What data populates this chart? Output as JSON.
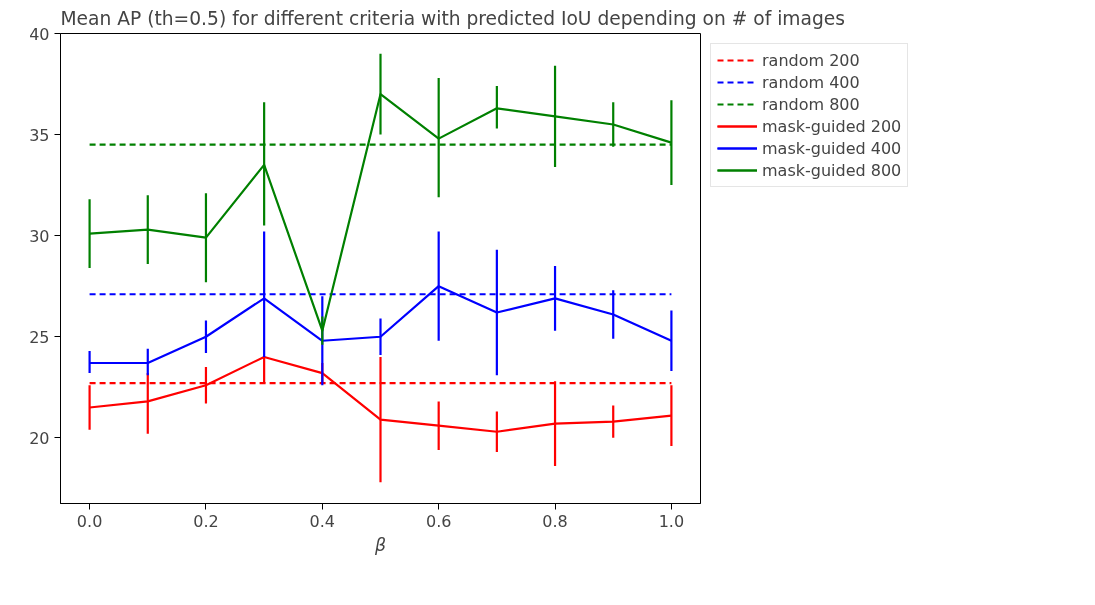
{
  "chart_data": {
    "type": "line",
    "title": "Mean AP (th=0.5) for different criteria with predicted IoU depending on # of images",
    "xlabel": "β",
    "x": [
      0.0,
      0.1,
      0.2,
      0.3,
      0.4,
      0.5,
      0.6,
      0.7,
      0.8,
      0.9,
      1.0
    ],
    "series": [
      {
        "name": "random 200",
        "color": "#ff0000",
        "line_style": "dashed",
        "values": [
          22.7,
          22.7,
          22.7,
          22.7,
          22.7,
          22.7,
          22.7,
          22.7,
          22.7,
          22.7,
          22.7
        ]
      },
      {
        "name": "random 400",
        "color": "#0000ff",
        "line_style": "dashed",
        "values": [
          27.1,
          27.1,
          27.1,
          27.1,
          27.1,
          27.1,
          27.1,
          27.1,
          27.1,
          27.1,
          27.1
        ]
      },
      {
        "name": "random 800",
        "color": "#008000",
        "line_style": "dashed",
        "values": [
          34.5,
          34.5,
          34.5,
          34.5,
          34.5,
          34.5,
          34.5,
          34.5,
          34.5,
          34.5,
          34.5
        ]
      },
      {
        "name": "mask-guided 200",
        "color": "#ff0000",
        "line_style": "solid",
        "values": [
          21.5,
          21.8,
          22.6,
          24.0,
          23.2,
          20.9,
          20.6,
          20.3,
          20.7,
          20.8,
          21.1
        ],
        "errors": [
          [
            20.4,
            22.6
          ],
          [
            20.2,
            23.2
          ],
          [
            21.7,
            23.5
          ],
          [
            22.7,
            24.0
          ],
          [
            22.7,
            23.7
          ],
          [
            17.8,
            24.0
          ],
          [
            19.4,
            21.8
          ],
          [
            19.3,
            21.3
          ],
          [
            18.6,
            22.8
          ],
          [
            20.0,
            21.6
          ],
          [
            19.6,
            22.6
          ]
        ]
      },
      {
        "name": "mask-guided 400",
        "color": "#0000ff",
        "line_style": "solid",
        "values": [
          23.7,
          23.7,
          25.0,
          26.9,
          24.8,
          25.0,
          27.5,
          26.2,
          26.9,
          26.1,
          24.8
        ],
        "errors": [
          [
            23.2,
            24.3
          ],
          [
            23.1,
            24.4
          ],
          [
            24.2,
            25.8
          ],
          [
            24.0,
            30.2
          ],
          [
            22.6,
            27.0
          ],
          [
            24.1,
            25.9
          ],
          [
            24.8,
            30.2
          ],
          [
            23.1,
            29.3
          ],
          [
            25.3,
            28.5
          ],
          [
            24.9,
            27.3
          ],
          [
            23.3,
            26.3
          ]
        ]
      },
      {
        "name": "mask-guided 800",
        "color": "#008000",
        "line_style": "solid",
        "values": [
          30.1,
          30.3,
          29.9,
          33.5,
          25.3,
          37.0,
          34.8,
          36.3,
          35.9,
          35.5,
          34.6
        ],
        "errors": [
          [
            28.4,
            31.8
          ],
          [
            28.6,
            32.0
          ],
          [
            27.7,
            32.1
          ],
          [
            30.5,
            36.6
          ],
          [
            24.6,
            26.0
          ],
          [
            35.0,
            39.0
          ],
          [
            31.9,
            37.8
          ],
          [
            35.3,
            37.4
          ],
          [
            33.4,
            38.4
          ],
          [
            34.4,
            36.6
          ],
          [
            32.5,
            36.7
          ]
        ]
      }
    ],
    "xlim": [
      -0.05,
      1.05
    ],
    "ylim": [
      16.75,
      40
    ],
    "xticks": [
      {
        "value": 0.0,
        "label": "0.0"
      },
      {
        "value": 0.2,
        "label": "0.2"
      },
      {
        "value": 0.4,
        "label": "0.4"
      },
      {
        "value": 0.6,
        "label": "0.6"
      },
      {
        "value": 0.8,
        "label": "0.8"
      },
      {
        "value": 1.0,
        "label": "1.0"
      }
    ],
    "yticks": [
      20,
      25,
      30,
      35,
      40
    ],
    "grid": false,
    "legend": "top right",
    "marker": "none"
  }
}
